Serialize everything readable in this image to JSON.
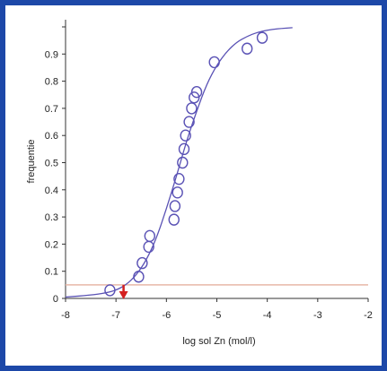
{
  "colors": {
    "frame": "#1d48a8",
    "curve": "#5a52b5",
    "marker": "#5a52b5",
    "threshold_line": "#e8b8a8",
    "arrow": "#d42020"
  },
  "chart_data": {
    "type": "scatter",
    "title": "",
    "xlabel": "log sol Zn (mol/l)",
    "ylabel": "frequentie",
    "xlim": [
      -8,
      -2
    ],
    "ylim": [
      0,
      1
    ],
    "x_ticks": [
      -8,
      -7,
      -6,
      -5,
      -4,
      -3,
      -2
    ],
    "x_tick_labels": [
      "-8",
      "-7",
      "-6",
      "-5",
      "-4",
      "-3",
      "-2"
    ],
    "y_ticks": [
      0,
      0.1,
      0.2,
      0.3,
      0.4,
      0.5,
      0.6,
      0.7,
      0.8,
      0.9
    ],
    "y_tick_labels": [
      "0",
      "0.1",
      "0.2",
      "0.3",
      "0.4",
      "0.5",
      "0.6",
      "0.7",
      "0.8",
      "0.9"
    ],
    "grid": false,
    "series": [
      {
        "kind": "points",
        "marker": "circle-open",
        "x": [
          -7.12,
          -6.55,
          -6.48,
          -6.35,
          -6.33,
          -5.85,
          -5.83,
          -5.78,
          -5.75,
          -5.68,
          -5.65,
          -5.62,
          -5.55,
          -5.5,
          -5.45,
          -5.4,
          -5.05,
          -4.4,
          -4.1
        ],
        "y": [
          0.03,
          0.08,
          0.13,
          0.19,
          0.23,
          0.29,
          0.34,
          0.39,
          0.44,
          0.5,
          0.55,
          0.6,
          0.65,
          0.7,
          0.74,
          0.76,
          0.87,
          0.92,
          0.96
        ]
      },
      {
        "kind": "curve",
        "x": [
          -8,
          -7.5,
          -7.2,
          -7.0,
          -6.8,
          -6.6,
          -6.4,
          -6.2,
          -6.0,
          -5.8,
          -5.6,
          -5.4,
          -5.2,
          -5.0,
          -4.8,
          -4.6,
          -4.4,
          -4.2,
          -4.0,
          -3.8,
          -3.5
        ],
        "y": [
          0.005,
          0.012,
          0.02,
          0.03,
          0.05,
          0.085,
          0.14,
          0.22,
          0.33,
          0.45,
          0.58,
          0.69,
          0.79,
          0.86,
          0.91,
          0.945,
          0.965,
          0.98,
          0.988,
          0.993,
          0.997
        ]
      }
    ],
    "threshold": {
      "y": 0.05
    },
    "marker_arrow": {
      "x": -6.85,
      "y_from": 0.05,
      "y_to": 0
    }
  }
}
